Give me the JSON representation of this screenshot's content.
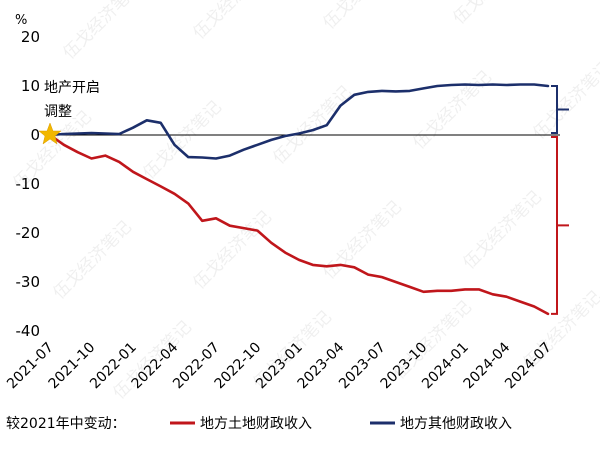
{
  "chart_data": {
    "type": "line",
    "unit_label": "%",
    "ylim": [
      -40,
      20
    ],
    "yticks": [
      20,
      10,
      0,
      -10,
      -20,
      -30,
      -40
    ],
    "xticks": [
      "2021-07",
      "2021-10",
      "2022-01",
      "2022-04",
      "2022-07",
      "2022-10",
      "2023-01",
      "2023-04",
      "2023-07",
      "2023-10",
      "2024-01",
      "2024-04",
      "2024-07"
    ],
    "annotation": [
      "地产开启",
      "调整"
    ],
    "legend_prefix": "较2021年中变动：",
    "watermark": "伍戈经济笔记",
    "series": [
      {
        "name": "地方土地财政收入",
        "color": "#c0161b",
        "x": [
          "2021-07",
          "2021-08",
          "2021-09",
          "2021-10",
          "2021-11",
          "2021-12",
          "2022-01",
          "2022-02",
          "2022-03",
          "2022-04",
          "2022-05",
          "2022-06",
          "2022-07",
          "2022-08",
          "2022-09",
          "2022-10",
          "2022-11",
          "2022-12",
          "2023-01",
          "2023-02",
          "2023-03",
          "2023-04",
          "2023-05",
          "2023-06",
          "2023-07",
          "2023-08",
          "2023-09",
          "2023-10",
          "2023-11",
          "2023-12",
          "2024-01",
          "2024-02",
          "2024-03",
          "2024-04",
          "2024-05",
          "2024-06",
          "2024-07"
        ],
        "values": [
          0,
          -2,
          -3.5,
          -4.8,
          -4.2,
          -5.5,
          -7.5,
          -9,
          -10.5,
          -12,
          -14,
          -17.5,
          -17,
          -18.5,
          -19,
          -19.5,
          -22,
          -24,
          -25.5,
          -26.5,
          -26.8,
          -26.5,
          -27,
          -28.5,
          -29,
          -30,
          -31,
          -32,
          -31.8,
          -31.8,
          -31.5,
          -31.5,
          -32.5,
          -33,
          -34,
          -35,
          -36.5
        ]
      },
      {
        "name": "地方其他财政收入",
        "color": "#1c2f6b",
        "x": [
          "2021-07",
          "2021-08",
          "2021-09",
          "2021-10",
          "2021-11",
          "2021-12",
          "2022-01",
          "2022-02",
          "2022-03",
          "2022-04",
          "2022-05",
          "2022-06",
          "2022-07",
          "2022-08",
          "2022-09",
          "2022-10",
          "2022-11",
          "2022-12",
          "2023-01",
          "2023-02",
          "2023-03",
          "2023-04",
          "2023-05",
          "2023-06",
          "2023-07",
          "2023-08",
          "2023-09",
          "2023-10",
          "2023-11",
          "2023-12",
          "2024-01",
          "2024-02",
          "2024-03",
          "2024-04",
          "2024-05",
          "2024-06",
          "2024-07"
        ],
        "values": [
          0,
          0.2,
          0.3,
          0.4,
          0.3,
          0.2,
          1.5,
          3,
          2.5,
          -2,
          -4.5,
          -4.6,
          -4.8,
          -4.2,
          -3,
          -2,
          -1,
          -0.2,
          0.3,
          1,
          2,
          6,
          8.2,
          8.8,
          9,
          8.9,
          9,
          9.5,
          10,
          10.2,
          10.3,
          10.2,
          10.3,
          10.2,
          10.3,
          10.3,
          10
        ]
      }
    ],
    "bracket_colors": [
      "#1c2f6b",
      "#c0161b"
    ]
  }
}
